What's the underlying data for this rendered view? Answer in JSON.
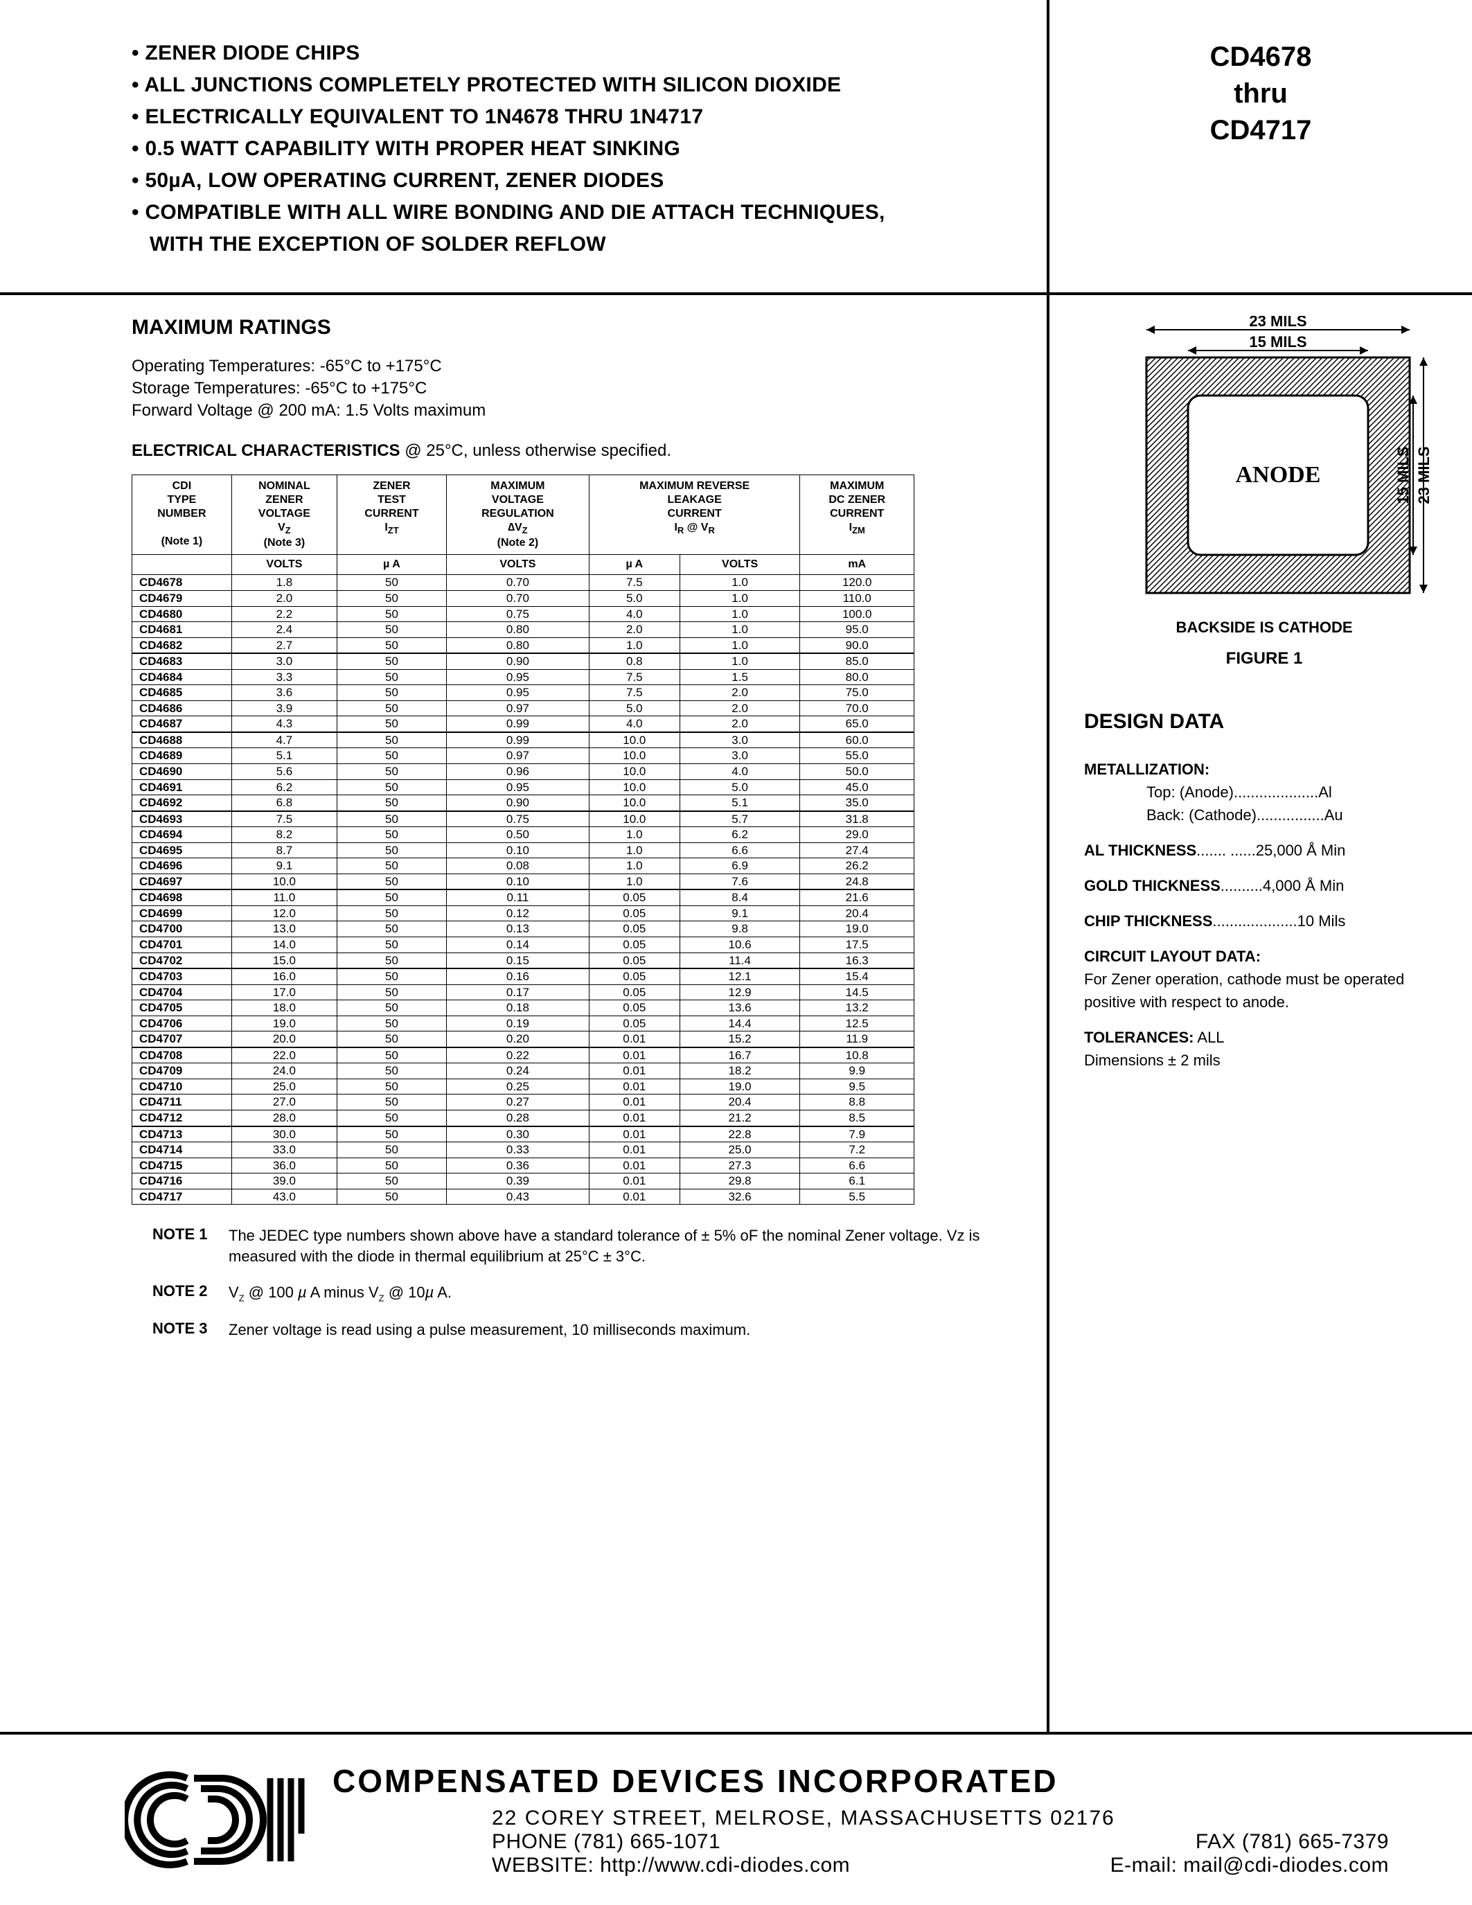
{
  "header": {
    "features": [
      "• ZENER DIODE CHIPS",
      "• ALL JUNCTIONS COMPLETELY PROTECTED WITH SILICON DIOXIDE",
      "• ELECTRICALLY EQUIVALENT TO 1N4678 THRU 1N4717",
      "• 0.5 WATT CAPABILITY WITH PROPER HEAT SINKING",
      "• 50µA, LOW OPERATING CURRENT, ZENER DIODES",
      "• COMPATIBLE WITH ALL WIRE BONDING AND DIE ATTACH TECHNIQUES,",
      "  WITH THE EXCEPTION OF SOLDER REFLOW"
    ],
    "part_from": "CD4678",
    "part_mid": "thru",
    "part_to": "CD4717"
  },
  "ratings": {
    "heading": "MAXIMUM RATINGS",
    "lines": [
      "Operating Temperatures: -65°C to +175°C",
      "Storage Temperatures: -65°C to +175°C",
      "Forward Voltage @ 200 mA: 1.5 Volts maximum"
    ],
    "elec_head_bold": "ELECTRICAL CHARACTERISTICS",
    "elec_head_rest": " @ 25°C, unless otherwise specified."
  },
  "table": {
    "head": {
      "c1_l1": "CDI",
      "c1_l2": "TYPE",
      "c1_l3": "NUMBER",
      "c1_note": "(Note 1)",
      "c2_l1": "NOMINAL",
      "c2_l2": "ZENER",
      "c2_l3": "VOLTAGE",
      "c2_sym": "V",
      "c2_sub": "Z",
      "c2_note": "(Note 3)",
      "c3_l1": "ZENER",
      "c3_l2": "TEST",
      "c3_l3": "CURRENT",
      "c3_sym": "I",
      "c3_sub": "ZT",
      "c4_l1": "MAXIMUM",
      "c4_l2": "VOLTAGE",
      "c4_l3": "REGULATION",
      "c4_sym": "∆V",
      "c4_sub": "Z",
      "c4_note": "(Note 2)",
      "c56_l1": "MAXIMUM REVERSE",
      "c56_l2": "LEAKAGE",
      "c56_l3": "CURRENT",
      "c56_sym": "I",
      "c56_sub": "R",
      "c56_at": " @ V",
      "c56_sub2": "R",
      "c7_l1": "MAXIMUM",
      "c7_l2": "DC ZENER",
      "c7_l3": "CURRENT",
      "c7_sym": "I",
      "c7_sub": "ZM"
    },
    "units": [
      "",
      "VOLTS",
      "µ A",
      "VOLTS",
      "µ A",
      "VOLTS",
      "mA"
    ],
    "groups": [
      [
        [
          "CD4678",
          "1.8",
          "50",
          "0.70",
          "7.5",
          "1.0",
          "120.0"
        ],
        [
          "CD4679",
          "2.0",
          "50",
          "0.70",
          "5.0",
          "1.0",
          "110.0"
        ],
        [
          "CD4680",
          "2.2",
          "50",
          "0.75",
          "4.0",
          "1.0",
          "100.0"
        ],
        [
          "CD4681",
          "2.4",
          "50",
          "0.80",
          "2.0",
          "1.0",
          "95.0"
        ],
        [
          "CD4682",
          "2.7",
          "50",
          "0.80",
          "1.0",
          "1.0",
          "90.0"
        ]
      ],
      [
        [
          "CD4683",
          "3.0",
          "50",
          "0.90",
          "0.8",
          "1.0",
          "85.0"
        ],
        [
          "CD4684",
          "3.3",
          "50",
          "0.95",
          "7.5",
          "1.5",
          "80.0"
        ],
        [
          "CD4685",
          "3.6",
          "50",
          "0.95",
          "7.5",
          "2.0",
          "75.0"
        ],
        [
          "CD4686",
          "3.9",
          "50",
          "0.97",
          "5.0",
          "2.0",
          "70.0"
        ],
        [
          "CD4687",
          "4.3",
          "50",
          "0.99",
          "4.0",
          "2.0",
          "65.0"
        ]
      ],
      [
        [
          "CD4688",
          "4.7",
          "50",
          "0.99",
          "10.0",
          "3.0",
          "60.0"
        ],
        [
          "CD4689",
          "5.1",
          "50",
          "0.97",
          "10.0",
          "3.0",
          "55.0"
        ],
        [
          "CD4690",
          "5.6",
          "50",
          "0.96",
          "10.0",
          "4.0",
          "50.0"
        ],
        [
          "CD4691",
          "6.2",
          "50",
          "0.95",
          "10.0",
          "5.0",
          "45.0"
        ],
        [
          "CD4692",
          "6.8",
          "50",
          "0.90",
          "10.0",
          "5.1",
          "35.0"
        ]
      ],
      [
        [
          "CD4693",
          "7.5",
          "50",
          "0.75",
          "10.0",
          "5.7",
          "31.8"
        ],
        [
          "CD4694",
          "8.2",
          "50",
          "0.50",
          "1.0",
          "6.2",
          "29.0"
        ],
        [
          "CD4695",
          "8.7",
          "50",
          "0.10",
          "1.0",
          "6.6",
          "27.4"
        ],
        [
          "CD4696",
          "9.1",
          "50",
          "0.08",
          "1.0",
          "6.9",
          "26.2"
        ],
        [
          "CD4697",
          "10.0",
          "50",
          "0.10",
          "1.0",
          "7.6",
          "24.8"
        ]
      ],
      [
        [
          "CD4698",
          "11.0",
          "50",
          "0.11",
          "0.05",
          "8.4",
          "21.6"
        ],
        [
          "CD4699",
          "12.0",
          "50",
          "0.12",
          "0.05",
          "9.1",
          "20.4"
        ],
        [
          "CD4700",
          "13.0",
          "50",
          "0.13",
          "0.05",
          "9.8",
          "19.0"
        ],
        [
          "CD4701",
          "14.0",
          "50",
          "0.14",
          "0.05",
          "10.6",
          "17.5"
        ],
        [
          "CD4702",
          "15.0",
          "50",
          "0.15",
          "0.05",
          "11.4",
          "16.3"
        ]
      ],
      [
        [
          "CD4703",
          "16.0",
          "50",
          "0.16",
          "0.05",
          "12.1",
          "15.4"
        ],
        [
          "CD4704",
          "17.0",
          "50",
          "0.17",
          "0.05",
          "12.9",
          "14.5"
        ],
        [
          "CD4705",
          "18.0",
          "50",
          "0.18",
          "0.05",
          "13.6",
          "13.2"
        ],
        [
          "CD4706",
          "19.0",
          "50",
          "0.19",
          "0.05",
          "14.4",
          "12.5"
        ],
        [
          "CD4707",
          "20.0",
          "50",
          "0.20",
          "0.01",
          "15.2",
          "11.9"
        ]
      ],
      [
        [
          "CD4708",
          "22.0",
          "50",
          "0.22",
          "0.01",
          "16.7",
          "10.8"
        ],
        [
          "CD4709",
          "24.0",
          "50",
          "0.24",
          "0.01",
          "18.2",
          "9.9"
        ],
        [
          "CD4710",
          "25.0",
          "50",
          "0.25",
          "0.01",
          "19.0",
          "9.5"
        ],
        [
          "CD4711",
          "27.0",
          "50",
          "0.27",
          "0.01",
          "20.4",
          "8.8"
        ],
        [
          "CD4712",
          "28.0",
          "50",
          "0.28",
          "0.01",
          "21.2",
          "8.5"
        ]
      ],
      [
        [
          "CD4713",
          "30.0",
          "50",
          "0.30",
          "0.01",
          "22.8",
          "7.9"
        ],
        [
          "CD4714",
          "33.0",
          "50",
          "0.33",
          "0.01",
          "25.0",
          "7.2"
        ],
        [
          "CD4715",
          "36.0",
          "50",
          "0.36",
          "0.01",
          "27.3",
          "6.6"
        ],
        [
          "CD4716",
          "39.0",
          "50",
          "0.39",
          "0.01",
          "29.8",
          "6.1"
        ],
        [
          "CD4717",
          "43.0",
          "50",
          "0.43",
          "0.01",
          "32.6",
          "5.5"
        ]
      ]
    ]
  },
  "notes": {
    "n1_label": "NOTE 1",
    "n1_text": "The JEDEC type numbers shown above have a standard tolerance of ± 5% oF the nominal Zener voltage. Vz is measured with the diode in thermal equilibrium at 25°C ± 3°C.",
    "n2_label": "NOTE 2",
    "n2_text": "VZ @ 100 µ A minus VZ @ 10µ A.",
    "n3_label": "NOTE 3",
    "n3_text": "Zener voltage is read using a pulse measurement, 10 milliseconds maximum."
  },
  "figure": {
    "dim_outer": "23 MILS",
    "dim_inner": "15 MILS",
    "anode_label": "ANODE",
    "caption1": "BACKSIDE IS CATHODE",
    "caption2": "FIGURE 1"
  },
  "design": {
    "heading": "DESIGN DATA",
    "metallization_label": "METALLIZATION:",
    "met_top": "Top: (Anode)....................Al",
    "met_back": "Back: (Cathode)................Au",
    "al_label": "AL THICKNESS",
    "al_val": "....... ......25,000 Å Min",
    "gold_label": "GOLD THICKNESS",
    "gold_val": "..........4,000 Å Min",
    "chip_label": "CHIP THICKNESS",
    "chip_val": "....................10 Mils",
    "circuit_label": "CIRCUIT LAYOUT DATA:",
    "circuit_text": "For Zener operation, cathode must be operated positive with respect to anode.",
    "tol_label": "TOLERANCES:",
    "tol_val": " ALL",
    "tol_text": "Dimensions ± 2 mils"
  },
  "footer": {
    "company": "COMPENSATED DEVICES INCORPORATED",
    "addr": "22  COREY  STREET,  MELROSE,  MASSACHUSETTS  02176",
    "phone": "PHONE (781) 665-1071",
    "fax": "FAX (781) 665-7379",
    "web": "WEBSITE:  http://www.cdi-diodes.com",
    "email": "E-mail: mail@cdi-diodes.com"
  }
}
